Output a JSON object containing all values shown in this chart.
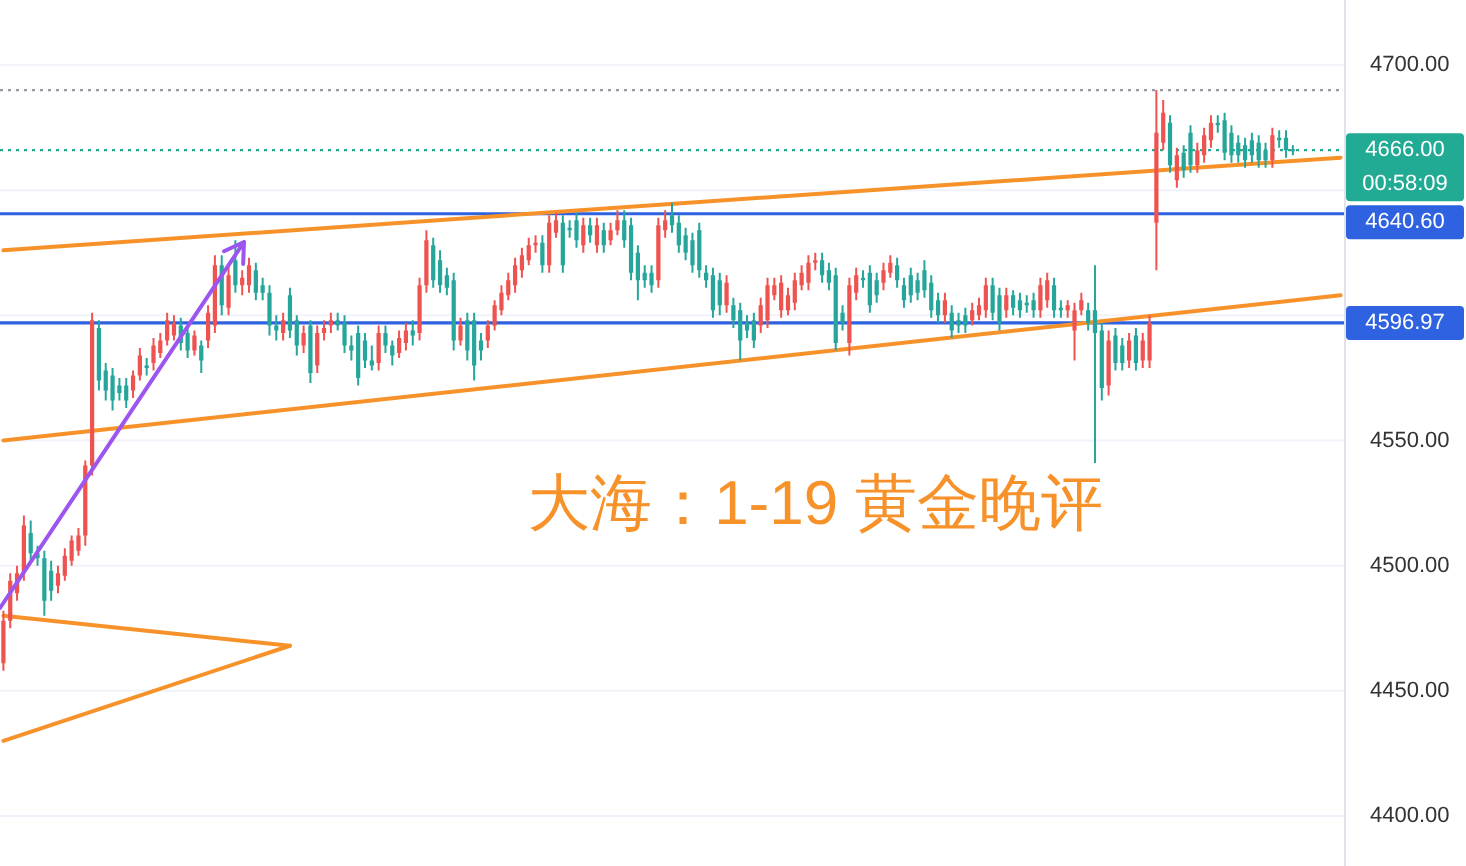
{
  "chart_data": {
    "type": "candlestick",
    "title": "大海：1-19 黄金晚评",
    "categories": [
      null,
      null,
      null,
      null,
      null,
      null,
      null,
      null,
      null,
      null,
      null,
      null,
      null,
      null,
      null,
      null,
      null,
      null,
      null,
      null,
      null,
      null,
      null,
      null,
      null,
      null,
      null,
      null,
      null,
      null,
      null,
      null,
      null,
      null,
      null,
      null,
      null,
      null,
      null,
      null,
      null,
      null,
      null,
      null,
      null,
      null,
      null,
      null,
      null,
      null,
      null,
      null,
      null,
      null,
      null,
      null,
      null,
      null,
      null,
      null,
      null,
      null,
      null,
      null,
      null,
      null,
      null,
      null,
      null,
      null,
      null,
      null,
      null,
      null,
      null,
      null,
      null,
      null,
      null,
      null,
      null,
      null,
      null,
      null,
      null,
      null,
      null,
      null,
      null,
      null,
      null,
      null,
      null,
      null,
      null,
      null,
      null,
      null,
      null,
      null,
      null,
      null,
      null,
      null,
      null,
      null,
      null,
      null,
      null,
      null,
      null,
      null,
      null,
      null,
      null,
      null,
      null,
      null,
      null,
      null,
      null,
      null,
      null,
      null,
      null,
      null,
      null,
      null,
      null,
      null,
      null,
      null,
      null,
      null,
      null,
      null,
      null,
      null,
      null,
      null,
      null,
      null,
      null,
      null,
      null,
      null,
      null,
      null,
      null,
      null,
      null,
      null,
      null,
      null,
      null,
      null,
      null,
      null,
      null,
      null,
      null,
      null,
      null,
      null,
      null,
      null,
      null,
      null,
      null,
      null,
      null,
      null,
      null,
      null,
      null,
      null,
      null,
      null,
      null,
      null,
      null,
      null,
      null,
      null,
      null,
      null,
      null,
      null,
      null,
      null,
      null,
      null,
      null,
      null,
      null,
      null,
      null
    ],
    "ohlc": [
      [
        4461,
        4482,
        4458,
        4478
      ],
      [
        4478,
        4497,
        4475,
        4494
      ],
      [
        4489,
        4500,
        4486,
        4497
      ],
      [
        4497,
        4520,
        4494,
        4516
      ],
      [
        4513,
        4518,
        4502,
        4505
      ],
      [
        4505,
        4508,
        4500,
        4503
      ],
      [
        4503,
        4506,
        4480,
        4486
      ],
      [
        4498,
        4502,
        4486,
        4490
      ],
      [
        4492,
        4500,
        4489,
        4497
      ],
      [
        4496,
        4507,
        4494,
        4504
      ],
      [
        4502,
        4512,
        4500,
        4510
      ],
      [
        4506,
        4515,
        4504,
        4512
      ],
      [
        4512,
        4542,
        4508,
        4540
      ],
      [
        4540,
        4601,
        4536,
        4598
      ],
      [
        4595,
        4598,
        4570,
        4574
      ],
      [
        4578,
        4581,
        4566,
        4570
      ],
      [
        4576,
        4579,
        4562,
        4566
      ],
      [
        4572,
        4575,
        4566,
        4569
      ],
      [
        4572,
        4575,
        4563,
        4566
      ],
      [
        4570,
        4578,
        4567,
        4576
      ],
      [
        4576,
        4587,
        4574,
        4584
      ],
      [
        4580,
        4583,
        4576,
        4579
      ],
      [
        4581,
        4591,
        4578,
        4588
      ],
      [
        4585,
        4593,
        4583,
        4590
      ],
      [
        4590,
        4601,
        4588,
        4598
      ],
      [
        4592,
        4600,
        4590,
        4597
      ],
      [
        4596,
        4599,
        4586,
        4589
      ],
      [
        4593,
        4595,
        4583,
        4586
      ],
      [
        4586,
        4594,
        4584,
        4592
      ],
      [
        4588,
        4590,
        4577,
        4582
      ],
      [
        4590,
        4604,
        4587,
        4601
      ],
      [
        4596,
        4624,
        4593,
        4620
      ],
      [
        4620,
        4624,
        4600,
        4604
      ],
      [
        4603,
        4620,
        4600,
        4616
      ],
      [
        4622,
        4630,
        4609,
        4612
      ],
      [
        4612,
        4618,
        4608,
        4615
      ],
      [
        4612,
        4623,
        4609,
        4620
      ],
      [
        4618,
        4621,
        4606,
        4609
      ],
      [
        4612,
        4615,
        4606,
        4609
      ],
      [
        4609,
        4612,
        4592,
        4596
      ],
      [
        4596,
        4600,
        4590,
        4594
      ],
      [
        4593,
        4601,
        4590,
        4598
      ],
      [
        4608,
        4611,
        4591,
        4594
      ],
      [
        4598,
        4600,
        4584,
        4588
      ],
      [
        4588,
        4596,
        4585,
        4593
      ],
      [
        4596,
        4598,
        4573,
        4577
      ],
      [
        4580,
        4596,
        4577,
        4593
      ],
      [
        4593,
        4598,
        4590,
        4595
      ],
      [
        4596,
        4601,
        4593,
        4598
      ],
      [
        4598,
        4601,
        4594,
        4596
      ],
      [
        4597,
        4600,
        4585,
        4588
      ],
      [
        4588,
        4592,
        4582,
        4586
      ],
      [
        4593,
        4596,
        4572,
        4575
      ],
      [
        4590,
        4593,
        4579,
        4582
      ],
      [
        4582,
        4588,
        4578,
        4580
      ],
      [
        4581,
        4596,
        4578,
        4593
      ],
      [
        4593,
        4596,
        4585,
        4588
      ],
      [
        4588,
        4590,
        4580,
        4584
      ],
      [
        4585,
        4594,
        4583,
        4591
      ],
      [
        4589,
        4597,
        4586,
        4594
      ],
      [
        4594,
        4598,
        4588,
        4592
      ],
      [
        4593,
        4615,
        4590,
        4612
      ],
      [
        4612,
        4634,
        4609,
        4630
      ],
      [
        4628,
        4631,
        4611,
        4614
      ],
      [
        4622,
        4626,
        4609,
        4612
      ],
      [
        4616,
        4619,
        4608,
        4611
      ],
      [
        4614,
        4617,
        4586,
        4590
      ],
      [
        4590,
        4599,
        4588,
        4596
      ],
      [
        4598,
        4601,
        4582,
        4586
      ],
      [
        4598,
        4601,
        4574,
        4580
      ],
      [
        4590,
        4593,
        4582,
        4586
      ],
      [
        4590,
        4598,
        4587,
        4596
      ],
      [
        4596,
        4606,
        4594,
        4604
      ],
      [
        4602,
        4612,
        4600,
        4609
      ],
      [
        4608,
        4617,
        4606,
        4614
      ],
      [
        4612,
        4623,
        4609,
        4620
      ],
      [
        4618,
        4627,
        4615,
        4624
      ],
      [
        4622,
        4631,
        4620,
        4628
      ],
      [
        4628,
        4632,
        4625,
        4629
      ],
      [
        4629,
        4632,
        4617,
        4620
      ],
      [
        4620,
        4640,
        4617,
        4637
      ],
      [
        4633,
        4641,
        4631,
        4638
      ],
      [
        4637,
        4640,
        4617,
        4620
      ],
      [
        4635,
        4638,
        4631,
        4634
      ],
      [
        4638,
        4641,
        4627,
        4630
      ],
      [
        4628,
        4639,
        4625,
        4636
      ],
      [
        4636,
        4639,
        4629,
        4632
      ],
      [
        4628,
        4639,
        4625,
        4636
      ],
      [
        4634,
        4637,
        4625,
        4628
      ],
      [
        4630,
        4637,
        4628,
        4634
      ],
      [
        4634,
        4642,
        4632,
        4638
      ],
      [
        4638,
        4642,
        4627,
        4630
      ],
      [
        4636,
        4639,
        4614,
        4617
      ],
      [
        4625,
        4628,
        4606,
        4614
      ],
      [
        4617,
        4620,
        4611,
        4614
      ],
      [
        4617,
        4620,
        4609,
        4612
      ],
      [
        4614,
        4639,
        4611,
        4636
      ],
      [
        4634,
        4642,
        4631,
        4638
      ],
      [
        4640,
        4645,
        4633,
        4636
      ],
      [
        4637,
        4640,
        4625,
        4628
      ],
      [
        4632,
        4635,
        4622,
        4625
      ],
      [
        4630,
        4633,
        4617,
        4620
      ],
      [
        4634,
        4637,
        4615,
        4618
      ],
      [
        4617,
        4620,
        4611,
        4614
      ],
      [
        4616,
        4619,
        4599,
        4602
      ],
      [
        4614,
        4617,
        4600,
        4604
      ],
      [
        4604,
        4616,
        4601,
        4613
      ],
      [
        4604,
        4607,
        4595,
        4598
      ],
      [
        4602,
        4605,
        4582,
        4590
      ],
      [
        4597,
        4600,
        4591,
        4594
      ],
      [
        4598,
        4601,
        4587,
        4590
      ],
      [
        4596,
        4607,
        4593,
        4604
      ],
      [
        4598,
        4615,
        4595,
        4612
      ],
      [
        4608,
        4615,
        4606,
        4612
      ],
      [
        4602,
        4616,
        4599,
        4613
      ],
      [
        4602,
        4611,
        4600,
        4608
      ],
      [
        4605,
        4617,
        4602,
        4614
      ],
      [
        4612,
        4620,
        4610,
        4617
      ],
      [
        4613,
        4624,
        4610,
        4621
      ],
      [
        4621,
        4625,
        4618,
        4622
      ],
      [
        4622,
        4625,
        4613,
        4616
      ],
      [
        4618,
        4621,
        4610,
        4613
      ],
      [
        4616,
        4619,
        4586,
        4589
      ],
      [
        4601,
        4604,
        4594,
        4597
      ],
      [
        4589,
        4615,
        4584,
        4612
      ],
      [
        4609,
        4619,
        4606,
        4616
      ],
      [
        4615,
        4618,
        4611,
        4614
      ],
      [
        4617,
        4620,
        4601,
        4604
      ],
      [
        4614,
        4617,
        4605,
        4608
      ],
      [
        4613,
        4621,
        4610,
        4618
      ],
      [
        4617,
        4624,
        4615,
        4621
      ],
      [
        4620,
        4623,
        4611,
        4614
      ],
      [
        4612,
        4615,
        4603,
        4606
      ],
      [
        4616,
        4619,
        4605,
        4608
      ],
      [
        4614,
        4617,
        4606,
        4609
      ],
      [
        4618,
        4622,
        4607,
        4610
      ],
      [
        4613,
        4616,
        4599,
        4602
      ],
      [
        4606,
        4609,
        4597,
        4600
      ],
      [
        4600,
        4609,
        4597,
        4606
      ],
      [
        4601,
        4604,
        4591,
        4594
      ],
      [
        4598,
        4601,
        4593,
        4596
      ],
      [
        4600,
        4603,
        4593,
        4596
      ],
      [
        4598,
        4605,
        4596,
        4602
      ],
      [
        4600,
        4607,
        4598,
        4604
      ],
      [
        4602,
        4615,
        4599,
        4612
      ],
      [
        4612,
        4615,
        4598,
        4601
      ],
      [
        4608,
        4611,
        4594,
        4597
      ],
      [
        4602,
        4611,
        4599,
        4608
      ],
      [
        4608,
        4610,
        4600,
        4603
      ],
      [
        4606,
        4609,
        4599,
        4602
      ],
      [
        4605,
        4608,
        4601,
        4604
      ],
      [
        4606,
        4609,
        4599,
        4602
      ],
      [
        4602,
        4615,
        4599,
        4612
      ],
      [
        4606,
        4617,
        4603,
        4614
      ],
      [
        4612,
        4615,
        4599,
        4602
      ],
      [
        4603,
        4606,
        4599,
        4602
      ],
      [
        4602,
        4606,
        4599,
        4604
      ],
      [
        4594,
        4605,
        4582,
        4602
      ],
      [
        4602,
        4609,
        4600,
        4606
      ],
      [
        4602,
        4605,
        4594,
        4597
      ],
      [
        4602,
        4620,
        4541,
        4593
      ],
      [
        4594,
        4597,
        4566,
        4571
      ],
      [
        4572,
        4594,
        4568,
        4590
      ],
      [
        4592,
        4595,
        4578,
        4581
      ],
      [
        4588,
        4591,
        4578,
        4581
      ],
      [
        4582,
        4593,
        4579,
        4590
      ],
      [
        4592,
        4595,
        4578,
        4581
      ],
      [
        4582,
        4593,
        4579,
        4590
      ],
      [
        4582,
        4600,
        4579,
        4597
      ],
      [
        4637,
        4690,
        4618,
        4673
      ],
      [
        4669,
        4686,
        4666,
        4681
      ],
      [
        4677,
        4680,
        4657,
        4660
      ],
      [
        4654,
        4667,
        4651,
        4664
      ],
      [
        4665,
        4668,
        4655,
        4658
      ],
      [
        4673,
        4676,
        4657,
        4660
      ],
      [
        4660,
        4669,
        4657,
        4666
      ],
      [
        4664,
        4675,
        4661,
        4672
      ],
      [
        4670,
        4680,
        4667,
        4677
      ],
      [
        4677,
        4680,
        4673,
        4676
      ],
      [
        4678,
        4681,
        4662,
        4665
      ],
      [
        4673,
        4676,
        4661,
        4664
      ],
      [
        4669,
        4672,
        4661,
        4664
      ],
      [
        4668,
        4671,
        4659,
        4662
      ],
      [
        4670,
        4673,
        4661,
        4664
      ],
      [
        4669,
        4672,
        4659,
        4662
      ],
      [
        4666,
        4669,
        4659,
        4662
      ],
      [
        4662,
        4675,
        4659,
        4672
      ],
      [
        4671,
        4674,
        4667,
        4670
      ],
      [
        4671,
        4674,
        4663,
        4666
      ],
      [
        4666,
        4668,
        4664,
        4666
      ],
      null,
      null,
      null,
      null,
      null,
      null,
      null
    ],
    "colors": [
      "#ef5350",
      "#ef5350",
      "#ef5350",
      "#ef5350",
      "#26a69a",
      "#26a69a",
      "#26a69a",
      "#26a69a",
      "#ef5350",
      "#ef5350",
      "#ef5350",
      "#ef5350",
      "#ef5350",
      "#ef5350",
      "#26a69a",
      "#26a69a",
      "#26a69a",
      "#26a69a",
      "#26a69a",
      "#ef5350",
      "#ef5350",
      "#26a69a",
      "#ef5350",
      "#ef5350",
      "#ef5350",
      "#ef5350",
      "#26a69a",
      "#26a69a",
      "#ef5350",
      "#26a69a",
      "#ef5350",
      "#ef5350",
      "#26a69a",
      "#ef5350",
      "#26a69a",
      "#ef5350",
      "#ef5350",
      "#26a69a",
      "#26a69a",
      "#26a69a",
      "#26a69a",
      "#ef5350",
      "#26a69a",
      "#26a69a",
      "#ef5350",
      "#26a69a",
      "#ef5350",
      "#ef5350",
      "#ef5350",
      "#26a69a",
      "#26a69a",
      "#26a69a",
      "#26a69a",
      "#26a69a",
      "#26a69a",
      "#ef5350",
      "#26a69a",
      "#26a69a",
      "#ef5350",
      "#ef5350",
      "#26a69a",
      "#ef5350",
      "#ef5350",
      "#26a69a",
      "#26a69a",
      "#26a69a",
      "#26a69a",
      "#ef5350",
      "#26a69a",
      "#26a69a",
      "#26a69a",
      "#ef5350",
      "#ef5350",
      "#ef5350",
      "#ef5350",
      "#ef5350",
      "#ef5350",
      "#ef5350",
      "#ef5350",
      "#26a69a",
      "#ef5350",
      "#ef5350",
      "#26a69a",
      "#26a69a",
      "#26a69a",
      "#ef5350",
      "#26a69a",
      "#ef5350",
      "#26a69a",
      "#ef5350",
      "#ef5350",
      "#26a69a",
      "#26a69a",
      "#26a69a",
      "#26a69a",
      "#26a69a",
      "#ef5350",
      "#ef5350",
      "#26a69a",
      "#26a69a",
      "#26a69a",
      "#26a69a",
      "#26a69a",
      "#26a69a",
      "#26a69a",
      "#26a69a",
      "#ef5350",
      "#26a69a",
      "#26a69a",
      "#26a69a",
      "#26a69a",
      "#ef5350",
      "#ef5350",
      "#ef5350",
      "#ef5350",
      "#ef5350",
      "#ef5350",
      "#ef5350",
      "#ef5350",
      "#ef5350",
      "#26a69a",
      "#26a69a",
      "#26a69a",
      "#26a69a",
      "#ef5350",
      "#ef5350",
      "#26a69a",
      "#26a69a",
      "#26a69a",
      "#ef5350",
      "#ef5350",
      "#26a69a",
      "#26a69a",
      "#26a69a",
      "#26a69a",
      "#26a69a",
      "#26a69a",
      "#26a69a",
      "#ef5350",
      "#26a69a",
      "#26a69a",
      "#26a69a",
      "#ef5350",
      "#ef5350",
      "#ef5350",
      "#26a69a",
      "#26a69a",
      "#ef5350",
      "#26a69a",
      "#26a69a",
      "#26a69a",
      "#26a69a",
      "#ef5350",
      "#ef5350",
      "#26a69a",
      "#26a69a",
      "#ef5350",
      "#ef5350",
      "#ef5350",
      "#26a69a",
      "#26a69a",
      "#26a69a",
      "#ef5350",
      "#26a69a",
      "#26a69a",
      "#ef5350",
      "#26a69a",
      "#ef5350",
      "#ef5350",
      "#ef5350",
      "#ef5350",
      "#26a69a",
      "#ef5350",
      "#26a69a",
      "#26a69a",
      "#ef5350",
      "#ef5350",
      "#ef5350",
      "#26a69a",
      "#26a69a",
      "#26a69a",
      "#26a69a",
      "#26a69a",
      "#26a69a",
      "#26a69a",
      "#26a69a",
      "#ef5350",
      "#26a69a",
      "#26a69a",
      "#26a69a",
      null,
      null,
      null,
      null,
      null,
      null,
      null
    ],
    "series": [
      {
        "type": "line",
        "color": "#f7922a",
        "values": [
          4626,
          null,
          null,
          null,
          null,
          null,
          null,
          null,
          null,
          null,
          null,
          null,
          null,
          null,
          null,
          null,
          null,
          null,
          null,
          null,
          null,
          null,
          null,
          null,
          null,
          null,
          null,
          null,
          null,
          null,
          null,
          null,
          null,
          null,
          null,
          null,
          null,
          null,
          null,
          null,
          null,
          null,
          null,
          null,
          null,
          null,
          null,
          null,
          null,
          null,
          null,
          null,
          null,
          null,
          null,
          null,
          null,
          null,
          null,
          null,
          null,
          null,
          null,
          null,
          null,
          null,
          null,
          null,
          null,
          null,
          null,
          null,
          null,
          null,
          null,
          null,
          null,
          null,
          null,
          null,
          null,
          null,
          null,
          null,
          null,
          null,
          null,
          null,
          null,
          null,
          null,
          null,
          null,
          null,
          null,
          null,
          null,
          null,
          null,
          null,
          null,
          null,
          null,
          null,
          null,
          null,
          null,
          null,
          null,
          null,
          null,
          null,
          null,
          null,
          null,
          null,
          null,
          null,
          null,
          null,
          null,
          null,
          null,
          null,
          null,
          null,
          null,
          null,
          null,
          null,
          null,
          null,
          null,
          null,
          null,
          null,
          null,
          null,
          null,
          null,
          null,
          null,
          null,
          null,
          null,
          null,
          null,
          null,
          null,
          null,
          null,
          null,
          null,
          null,
          null,
          null,
          null,
          null,
          null,
          null,
          null,
          null,
          null,
          null,
          null,
          null,
          null,
          null,
          null,
          null,
          null,
          null,
          null,
          null,
          null,
          null,
          null,
          null,
          null,
          null,
          null,
          null,
          null,
          null,
          null,
          null,
          null,
          null,
          null,
          null,
          null,
          null,
          null,
          null,
          null,
          null,
          4663
        ]
      },
      {
        "type": "line",
        "color": "#f7922a",
        "values": [
          4550,
          null,
          null,
          null,
          null,
          null,
          null,
          null,
          null,
          null,
          null,
          null,
          null,
          null,
          null,
          null,
          null,
          null,
          null,
          null,
          null,
          null,
          null,
          null,
          null,
          null,
          null,
          null,
          null,
          null,
          null,
          null,
          null,
          null,
          null,
          null,
          null,
          null,
          null,
          null,
          null,
          null,
          null,
          null,
          null,
          null,
          null,
          null,
          null,
          null,
          null,
          null,
          null,
          null,
          null,
          null,
          null,
          null,
          null,
          null,
          null,
          null,
          null,
          null,
          null,
          null,
          null,
          null,
          null,
          null,
          null,
          null,
          null,
          null,
          null,
          null,
          null,
          null,
          null,
          null,
          null,
          null,
          null,
          null,
          null,
          null,
          null,
          null,
          null,
          null,
          null,
          null,
          null,
          null,
          null,
          null,
          null,
          null,
          null,
          null,
          null,
          null,
          null,
          null,
          null,
          null,
          null,
          null,
          null,
          null,
          null,
          null,
          null,
          null,
          null,
          null,
          null,
          null,
          null,
          null,
          null,
          null,
          null,
          null,
          null,
          null,
          null,
          null,
          null,
          null,
          null,
          null,
          null,
          null,
          null,
          null,
          null,
          null,
          null,
          null,
          null,
          null,
          null,
          null,
          null,
          null,
          null,
          null,
          null,
          null,
          null,
          null,
          null,
          null,
          null,
          null,
          null,
          null,
          null,
          null,
          null,
          null,
          null,
          null,
          null,
          null,
          null,
          null,
          null,
          null,
          null,
          null,
          null,
          null,
          null,
          null,
          null,
          null,
          null,
          null,
          null,
          null,
          null,
          null,
          null,
          null,
          null,
          null,
          null,
          null,
          null,
          null,
          null,
          null,
          null,
          null,
          4608
        ]
      },
      {
        "type": "line",
        "color": "#f7922a",
        "values": [
          4480,
          null,
          null,
          null,
          null,
          null,
          null,
          null,
          null,
          null,
          null,
          null,
          null,
          null,
          null,
          null,
          null,
          null,
          null,
          null,
          null,
          null,
          null,
          null,
          null,
          null,
          null,
          null,
          null,
          null,
          null,
          null,
          null,
          null,
          null,
          null,
          null,
          null,
          null,
          null,
          null,
          null,
          4468,
          null,
          null,
          null,
          null,
          null,
          null,
          null,
          null,
          null,
          null,
          null,
          null,
          null,
          null,
          null,
          null,
          null,
          null,
          null,
          null,
          null,
          null,
          null,
          null,
          null,
          null,
          null,
          null,
          null,
          null,
          null,
          null,
          null,
          null,
          null,
          null,
          null,
          null,
          null,
          null,
          null,
          null,
          null,
          null,
          null,
          null,
          null,
          null,
          null,
          null,
          null,
          null,
          null,
          null,
          null,
          null,
          null,
          null,
          null,
          null,
          null,
          null,
          null,
          null,
          null,
          null,
          null,
          null,
          null,
          null,
          null,
          null,
          null,
          null,
          null,
          null,
          null,
          null,
          null,
          null,
          null,
          null,
          null,
          null,
          null,
          null,
          null,
          null,
          null,
          null,
          null,
          null,
          null,
          null,
          null,
          null,
          null,
          null,
          null,
          null,
          null,
          null,
          null,
          null,
          null,
          null,
          null,
          null,
          null,
          null,
          null,
          null,
          null,
          null,
          null,
          null,
          null,
          null,
          null,
          null,
          null,
          null,
          null,
          null,
          null,
          null,
          null,
          null,
          null,
          null,
          null,
          null,
          null,
          null,
          null,
          null,
          null,
          null,
          null,
          null,
          null,
          null,
          null,
          null,
          null,
          null,
          null,
          null,
          null,
          null,
          null,
          null,
          null,
          null
        ]
      },
      {
        "type": "line",
        "color": "#f7922a",
        "values": [
          4430,
          null,
          null,
          null,
          null,
          null,
          null,
          null,
          null,
          null,
          null,
          null,
          null,
          null,
          null,
          null,
          null,
          null,
          null,
          null,
          null,
          null,
          null,
          null,
          null,
          null,
          null,
          null,
          null,
          null,
          null,
          null,
          null,
          null,
          null,
          null,
          null,
          null,
          null,
          null,
          null,
          null,
          4468,
          null,
          null,
          null,
          null,
          null,
          null,
          null,
          null,
          null,
          null,
          null,
          null,
          null,
          null,
          null,
          null,
          null,
          null,
          null,
          null,
          null,
          null,
          null,
          null,
          null,
          null,
          null,
          null,
          null,
          null,
          null,
          null,
          null,
          null,
          null,
          null,
          null,
          null,
          null,
          null,
          null,
          null,
          null,
          null,
          null,
          null,
          null,
          null,
          null,
          null,
          null,
          null,
          null,
          null,
          null,
          null,
          null,
          null,
          null,
          null,
          null,
          null,
          null,
          null,
          null,
          null,
          null,
          null,
          null,
          null,
          null,
          null,
          null,
          null,
          null,
          null,
          null,
          null,
          null,
          null,
          null,
          null,
          null,
          null,
          null,
          null,
          null,
          null,
          null,
          null,
          null,
          null,
          null,
          null,
          null,
          null,
          null,
          null,
          null,
          null,
          null,
          null,
          null,
          null,
          null,
          null,
          null,
          null,
          null,
          null,
          null,
          null,
          null,
          null,
          null,
          null,
          null,
          null,
          null,
          null,
          null,
          null,
          null,
          null,
          null,
          null,
          null,
          null,
          null,
          null,
          null,
          null,
          null,
          null,
          null,
          null,
          null,
          null,
          null,
          null,
          null,
          null,
          null,
          null,
          null,
          null,
          null,
          null,
          null,
          null,
          null,
          null,
          null,
          null
        ]
      }
    ],
    "ylim": [
      4380,
      4726
    ],
    "yticks": [
      {
        "value": 4400,
        "label": "4400.00"
      },
      {
        "value": 4450,
        "label": "4450.00"
      },
      {
        "value": 4500,
        "label": "4500.00"
      },
      {
        "value": 4550,
        "label": "4550.00"
      },
      {
        "value": 4600,
        "label": null
      },
      {
        "value": 4650,
        "label": null
      },
      {
        "value": 4700,
        "label": "4700.00"
      }
    ],
    "grid": "y",
    "ref_lines": [
      {
        "axis": "y",
        "value": 4690,
        "color": "#9598a1",
        "line_style": "dotted"
      },
      {
        "axis": "y",
        "value": 4666,
        "label": "4666.00",
        "color": "#22ab94",
        "line_style": "dotted"
      },
      {
        "axis": "y",
        "value": 4640.6,
        "label": "4640.60",
        "color": "#2f62e0"
      },
      {
        "axis": "y",
        "value": 4596.97,
        "label": "4596.97",
        "color": "#2f62e0"
      }
    ],
    "annotations": [
      "00:58:09"
    ],
    "tick_labels": "y"
  }
}
